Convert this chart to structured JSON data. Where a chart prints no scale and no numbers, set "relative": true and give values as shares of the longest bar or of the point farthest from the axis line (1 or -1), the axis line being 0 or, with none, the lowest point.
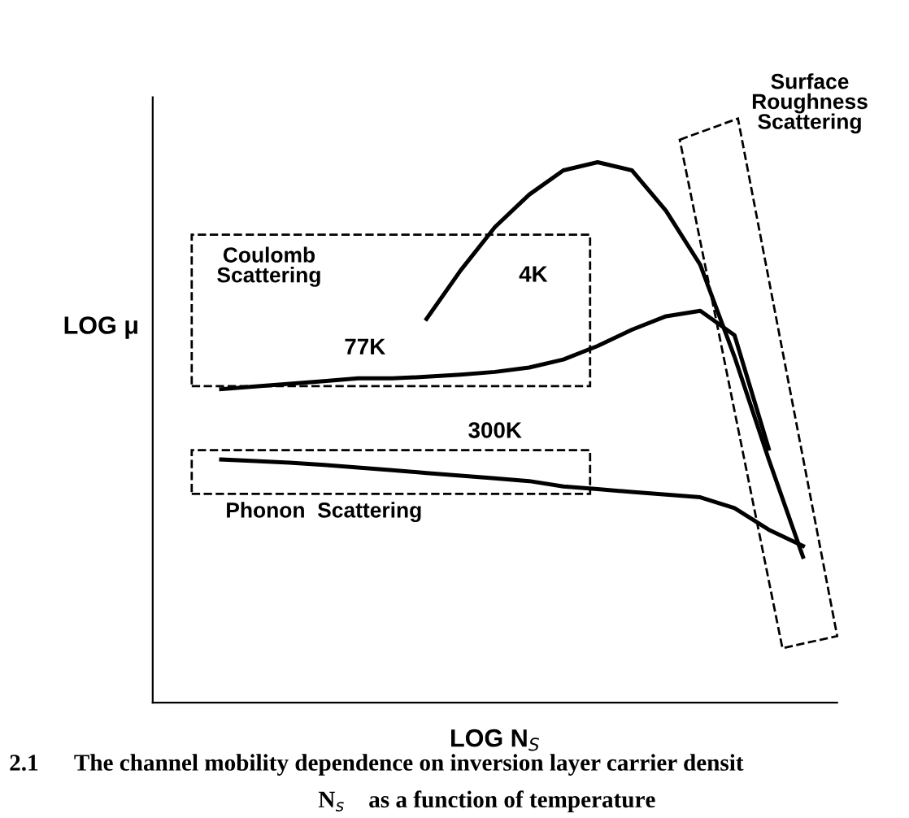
{
  "chart_data": {
    "type": "line",
    "relative": true,
    "xlabel": "LOG N$_{S}$",
    "ylabel": "LOG μ",
    "marker": "none",
    "line_style": "solid",
    "categories": [
      null,
      null,
      null,
      null,
      null,
      null,
      null,
      null,
      null,
      null,
      null,
      null,
      null,
      null,
      null,
      null,
      null,
      null
    ],
    "series": [
      {
        "name": "4K",
        "color": "#000000",
        "values": [
          null,
          null,
          null,
          null,
          null,
          null,
          0.71,
          0.8,
          0.88,
          0.94,
          0.985,
          1.0,
          0.985,
          0.91,
          0.81,
          0.64,
          0.45,
          0.27
        ]
      },
      {
        "name": "77K",
        "color": "#000000",
        "values": [
          0.58,
          0.585,
          0.59,
          0.595,
          0.6,
          0.6,
          0.603,
          0.607,
          0.612,
          0.62,
          0.635,
          0.66,
          0.69,
          0.715,
          0.725,
          0.68,
          0.47,
          null
        ]
      },
      {
        "name": "300K",
        "color": "#000000",
        "values": [
          0.45,
          0.447,
          0.444,
          0.44,
          0.435,
          0.43,
          0.425,
          0.42,
          0.415,
          0.41,
          0.4,
          0.395,
          0.39,
          0.385,
          0.38,
          0.36,
          0.32,
          0.29
        ]
      }
    ],
    "annotations": [
      "Coulomb\nScattering",
      "Surface\nRoughness\nScattering",
      "Phonon  Scattering",
      "2.1      The channel mobility dependence on inversion layer carrier densit",
      "N$_{s}$    as a function of temperature"
    ]
  }
}
